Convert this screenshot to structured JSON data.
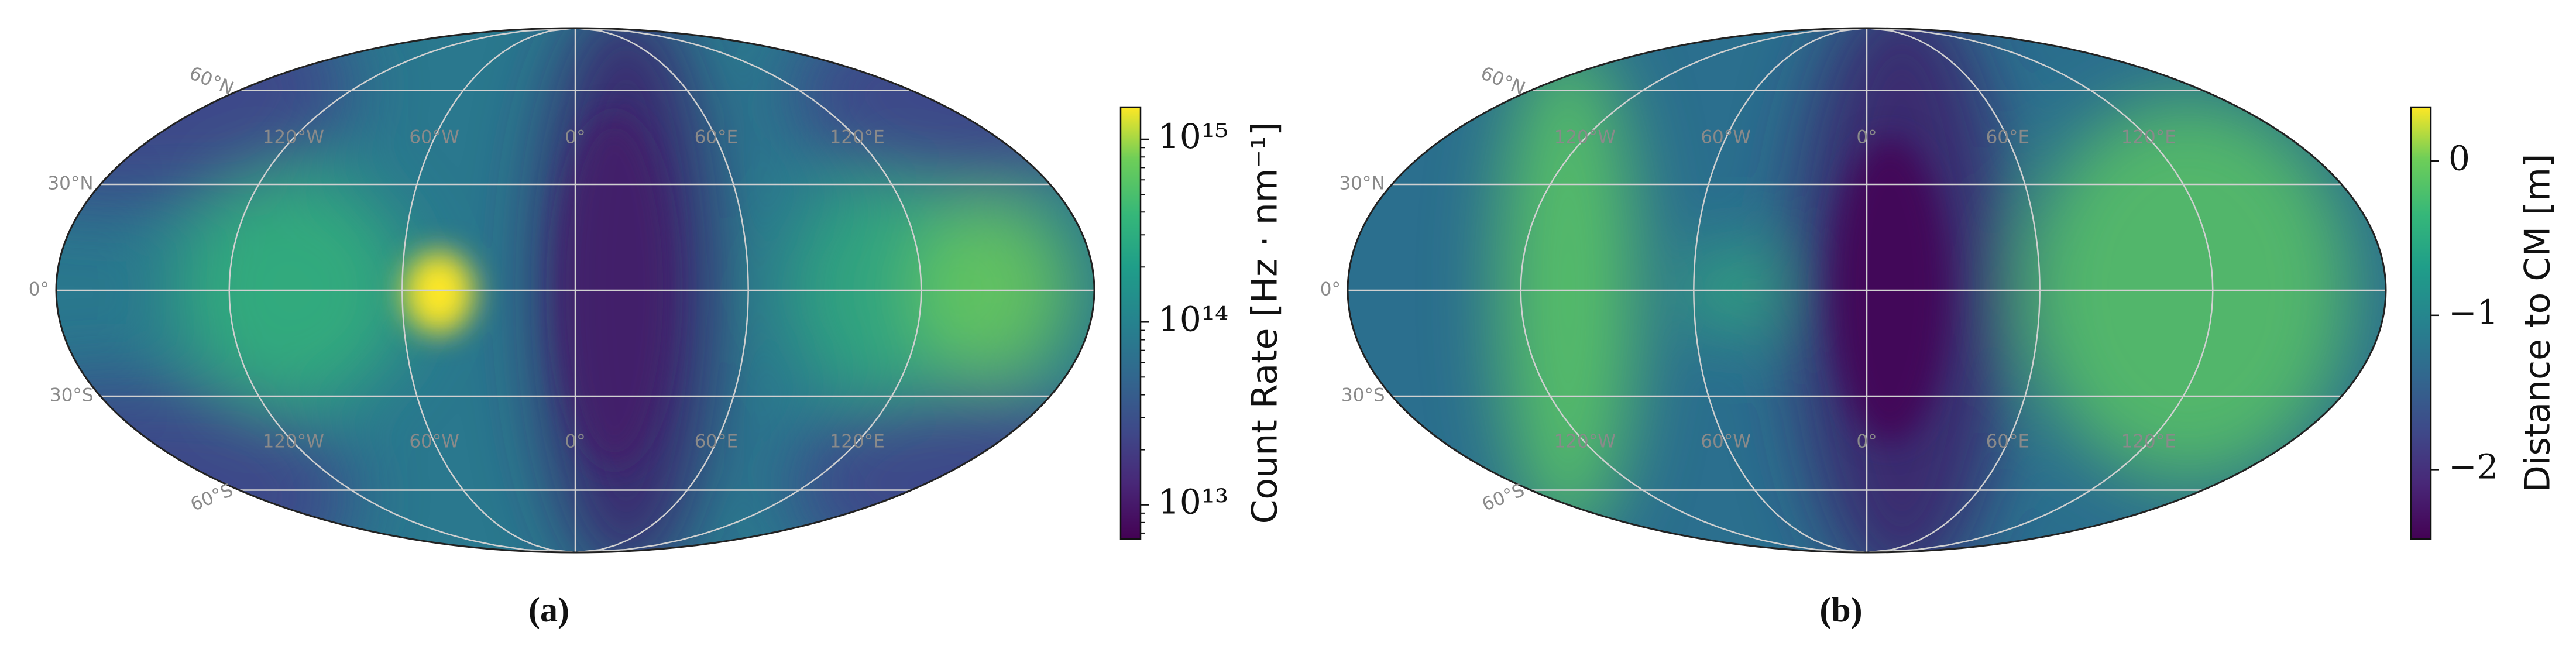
{
  "chart_data": [
    {
      "type": "heatmap",
      "projection": "mollweide",
      "caption": "(a)",
      "colorbar_label": "Count Rate [Hz · nm⁻¹]",
      "colormap": "viridis",
      "log_scale": true,
      "clim": [
        6500000000000,
        1500000000000000
      ],
      "cticks": [
        {
          "value": 10000000000000,
          "label": "10¹³"
        },
        {
          "value": 100000000000000,
          "label": "10¹⁴"
        },
        {
          "value": 1000000000000000,
          "label": "10¹⁵"
        }
      ],
      "lon_labels": [
        "120°W",
        "60°W",
        "0°",
        "60°E",
        "120°E"
      ],
      "lat_labels": [
        "60°N",
        "30°N",
        "0°",
        "30°S",
        "60°S"
      ]
    },
    {
      "type": "heatmap",
      "projection": "mollweide",
      "caption": "(b)",
      "colorbar_label": "Distance to CM [m]",
      "colormap": "viridis",
      "log_scale": false,
      "clim": [
        -2.45,
        0.35
      ],
      "cticks": [
        {
          "value": -2,
          "label": "−2"
        },
        {
          "value": -1,
          "label": "−1"
        },
        0
      ],
      "lon_labels": [
        "120°W",
        "60°W",
        "0°",
        "60°E",
        "120°E"
      ],
      "lat_labels": [
        "60°N",
        "30°N",
        "0°",
        "30°S",
        "60°S"
      ]
    }
  ]
}
